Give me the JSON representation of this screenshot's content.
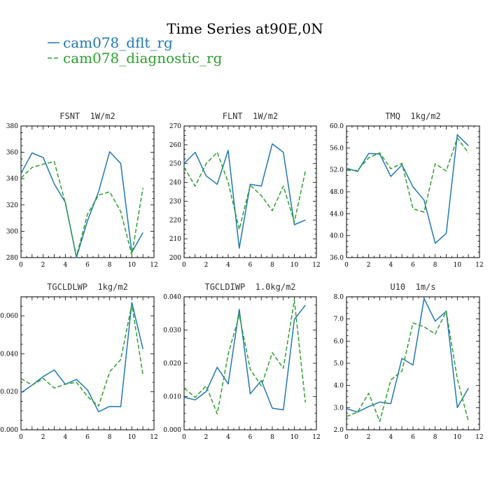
{
  "title": "Time Series at90E,0N",
  "legend": [
    {
      "label": "cam078_dflt_rg",
      "color": "#1f77b4",
      "dash": "solid"
    },
    {
      "label": "cam078_diagnostic_rg",
      "color": "#2ca02c",
      "dash": "dashed"
    }
  ],
  "chart_data": [
    {
      "type": "line",
      "name": "FSNT",
      "title": "FSNT  1W/m2",
      "x": [
        0,
        1,
        2,
        3,
        4,
        5,
        6,
        7,
        8,
        9,
        10,
        11
      ],
      "xlim": [
        0,
        12
      ],
      "xticks": [
        "0",
        "2",
        "4",
        "6",
        "8",
        "10",
        "12"
      ],
      "xtick_values": [
        0,
        2,
        4,
        6,
        8,
        10,
        12
      ],
      "ylim": [
        280,
        380
      ],
      "yticks": [
        "280",
        "300",
        "320",
        "340",
        "360",
        "380"
      ],
      "ytick_values": [
        280,
        300,
        320,
        340,
        360,
        380
      ],
      "series": [
        {
          "name": "cam078_dflt_rg",
          "values": [
            344,
            359.5,
            356,
            336,
            322,
            280,
            308,
            330,
            360.5,
            351.5,
            284,
            299
          ]
        },
        {
          "name": "cam078_diagnostic_rg",
          "values": [
            340.5,
            348.5,
            351,
            353,
            321.5,
            281,
            313,
            327.5,
            330,
            315,
            282,
            333
          ]
        }
      ]
    },
    {
      "type": "line",
      "name": "FLNT",
      "title": "FLNT  1W/m2",
      "x": [
        0,
        1,
        2,
        3,
        4,
        5,
        6,
        7,
        8,
        9,
        10,
        11
      ],
      "xlim": [
        0,
        12
      ],
      "xticks": [
        "0",
        "2",
        "4",
        "6",
        "8",
        "10",
        "12"
      ],
      "xtick_values": [
        0,
        2,
        4,
        6,
        8,
        10,
        12
      ],
      "ylim": [
        200,
        270
      ],
      "yticks": [
        "200",
        "210",
        "220",
        "230",
        "240",
        "250",
        "260",
        "270"
      ],
      "ytick_values": [
        200,
        210,
        220,
        230,
        240,
        250,
        260,
        270
      ],
      "series": [
        {
          "name": "cam078_dflt_rg",
          "values": [
            250,
            256,
            243.5,
            239,
            257,
            205,
            239,
            238,
            260.5,
            256,
            217.5,
            220
          ]
        },
        {
          "name": "cam078_diagnostic_rg",
          "values": [
            248,
            238,
            250,
            256,
            240,
            215,
            238.5,
            233,
            225,
            238,
            219,
            246
          ]
        }
      ]
    },
    {
      "type": "line",
      "name": "TMQ",
      "title": "TMQ  1kg/m2",
      "x": [
        0,
        1,
        2,
        3,
        4,
        5,
        6,
        7,
        8,
        9,
        10,
        11
      ],
      "xlim": [
        0,
        12
      ],
      "xticks": [
        "0",
        "2",
        "4",
        "6",
        "8",
        "10",
        "12"
      ],
      "xtick_values": [
        0,
        2,
        4,
        6,
        8,
        10,
        12
      ],
      "ylim": [
        36,
        60
      ],
      "yticks": [
        "36.0",
        "40.0",
        "44.0",
        "48.0",
        "52.0",
        "56.0",
        "60.0"
      ],
      "ytick_values": [
        36,
        40,
        44,
        48,
        52,
        56,
        60
      ],
      "series": [
        {
          "name": "cam078_dflt_rg",
          "values": [
            52.3,
            51.7,
            55,
            54.9,
            50.8,
            52.9,
            48.9,
            46.5,
            38.6,
            40.4,
            58.4,
            56.4
          ]
        },
        {
          "name": "cam078_diagnostic_rg",
          "values": [
            51.9,
            51.9,
            54.2,
            55.1,
            52.2,
            53.2,
            44.9,
            44.3,
            53.1,
            51.8,
            57.8,
            55.1
          ]
        }
      ]
    },
    {
      "type": "line",
      "name": "TGCLDLWP",
      "title": "TGCLDLWP  1kg/m2",
      "x": [
        0,
        1,
        2,
        3,
        4,
        5,
        6,
        7,
        8,
        9,
        10,
        11
      ],
      "xlim": [
        0,
        12
      ],
      "xticks": [
        "0",
        "2",
        "4",
        "6",
        "8",
        "10",
        "12"
      ],
      "xtick_values": [
        0,
        2,
        4,
        6,
        8,
        10,
        12
      ],
      "ylim": [
        0.0,
        0.07
      ],
      "yticks": [
        "0.000",
        "0.020",
        "0.040",
        "0.060"
      ],
      "ytick_values": [
        0,
        0.02,
        0.04,
        0.06
      ],
      "series": [
        {
          "name": "cam078_dflt_rg",
          "values": [
            0.0195,
            0.0235,
            0.028,
            0.0315,
            0.024,
            0.0265,
            0.021,
            0.0095,
            0.0123,
            0.0122,
            0.067,
            0.0425
          ]
        },
        {
          "name": "cam078_diagnostic_rg",
          "values": [
            0.027,
            0.0235,
            0.027,
            0.022,
            0.024,
            0.025,
            0.0175,
            0.0125,
            0.0305,
            0.037,
            0.066,
            0.029
          ]
        }
      ]
    },
    {
      "type": "line",
      "name": "TGCLDIWP",
      "title": "TGCLDIWP  1.0kg/m2",
      "x": [
        0,
        1,
        2,
        3,
        4,
        5,
        6,
        7,
        8,
        9,
        10,
        11
      ],
      "xlim": [
        0,
        12
      ],
      "xticks": [
        "0",
        "2",
        "4",
        "6",
        "8",
        "10",
        "12"
      ],
      "xtick_values": [
        0,
        2,
        4,
        6,
        8,
        10,
        12
      ],
      "ylim": [
        0.0,
        0.04
      ],
      "yticks": [
        "0.000",
        "0.010",
        "0.020",
        "0.030",
        "0.040"
      ],
      "ytick_values": [
        0,
        0.01,
        0.02,
        0.03,
        0.04
      ],
      "series": [
        {
          "name": "cam078_dflt_rg",
          "values": [
            0.0098,
            0.009,
            0.0115,
            0.0188,
            0.0138,
            0.0362,
            0.0108,
            0.0148,
            0.0065,
            0.006,
            0.0332,
            0.0375
          ]
        },
        {
          "name": "cam078_diagnostic_rg",
          "values": [
            0.0125,
            0.0098,
            0.0132,
            0.0048,
            0.0228,
            0.0345,
            0.0182,
            0.0132,
            0.0232,
            0.0185,
            0.039,
            0.0082
          ]
        }
      ]
    },
    {
      "type": "line",
      "name": "U10",
      "title": "U10  1m/s",
      "x": [
        0,
        1,
        2,
        3,
        4,
        5,
        6,
        7,
        8,
        9,
        10,
        11
      ],
      "xlim": [
        0,
        12
      ],
      "xticks": [
        "0",
        "2",
        "4",
        "6",
        "8",
        "10",
        "12"
      ],
      "xtick_values": [
        0,
        2,
        4,
        6,
        8,
        10,
        12
      ],
      "ylim": [
        2.0,
        8.0
      ],
      "yticks": [
        "2.0",
        "3.0",
        "4.0",
        "5.0",
        "6.0",
        "7.0",
        "8.0"
      ],
      "ytick_values": [
        2,
        3,
        4,
        5,
        6,
        7,
        8
      ],
      "series": [
        {
          "name": "cam078_dflt_rg",
          "values": [
            2.95,
            2.8,
            3.05,
            3.25,
            3.18,
            5.22,
            4.92,
            7.92,
            6.9,
            7.35,
            3.0,
            3.88
          ]
        },
        {
          "name": "cam078_diagnostic_rg",
          "values": [
            2.6,
            2.8,
            3.65,
            2.38,
            4.25,
            4.65,
            6.82,
            6.65,
            6.32,
            7.35,
            4.3,
            2.38
          ]
        }
      ]
    }
  ]
}
